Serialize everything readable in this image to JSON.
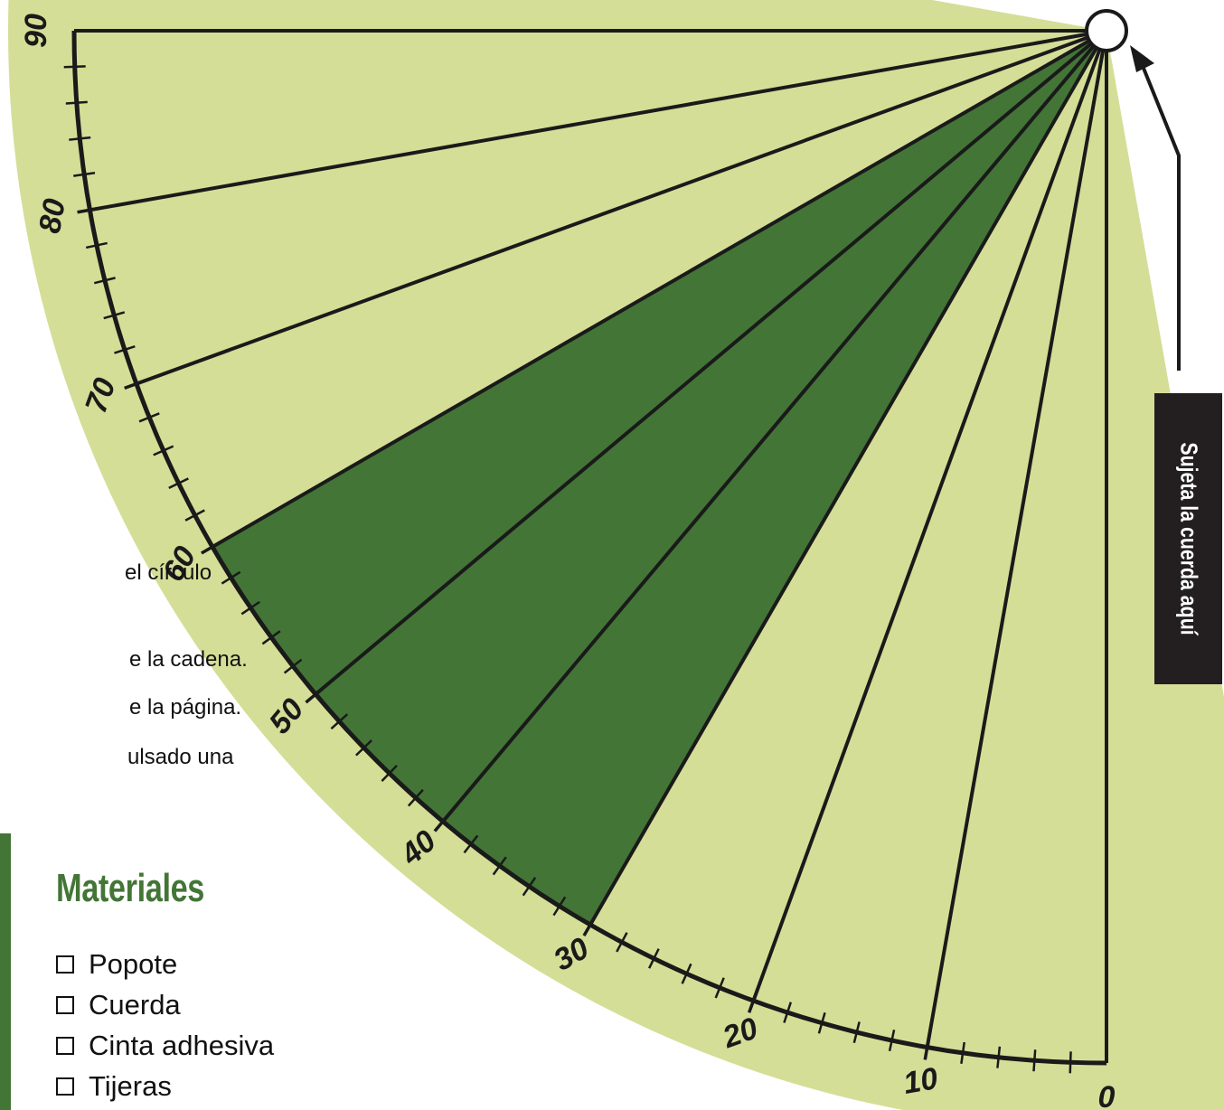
{
  "colors": {
    "background": "#ffffff",
    "protractor_fill": "#d4de96",
    "highlight_fill": "#437537",
    "ink": "#1a1a1a",
    "accent_green": "#437537"
  },
  "protractor": {
    "scale_labels": [
      "0",
      "10",
      "20",
      "30",
      "40",
      "50",
      "60",
      "70",
      "80",
      "90"
    ],
    "highlighted_range_degrees": [
      30,
      60
    ],
    "minor_tick_step_degrees": 2,
    "pivot_icon": "circle-pivot"
  },
  "instructions": {
    "partial_lines": [
      "el círculo",
      "e la cadena.",
      "e la página.",
      "ulsado una"
    ]
  },
  "materials": {
    "title": "Materiales",
    "items": [
      "Popote",
      "Cuerda",
      "Cinta adhesiva",
      "Tijeras"
    ]
  },
  "callout": {
    "label": "Sujeta la cuerda aquí"
  }
}
